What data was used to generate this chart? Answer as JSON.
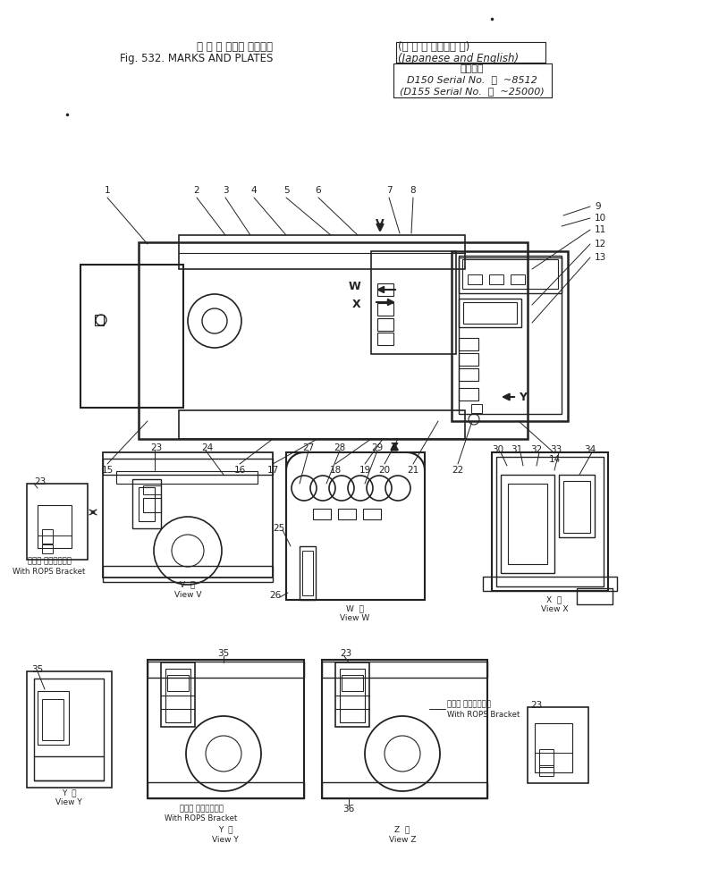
{
  "bg_color": "#ffffff",
  "line_color": "#222222",
  "title_jp": "マ ー ク および プレート",
  "title_jp2": "(日 本 語 および英 語)",
  "title_en": "Fig. 532. MARKS AND PLATES",
  "title_en2": "(Japanese and English)",
  "serial_hdr": "適用号機",
  "serial1": "D150 Serial No.  ・  ~8512",
  "serial2": "(D155 Serial No.  ・  ~25000)",
  "rops1": "ロプス ブラケット付",
  "rops2": "With ROPS Bracket",
  "v_view": "V  視\nView V",
  "w_view": "W  視\nView W",
  "x_view": "X  視\nView X",
  "y_view": "Y  視\nView Y",
  "z_view": "Z  視\nView Z"
}
